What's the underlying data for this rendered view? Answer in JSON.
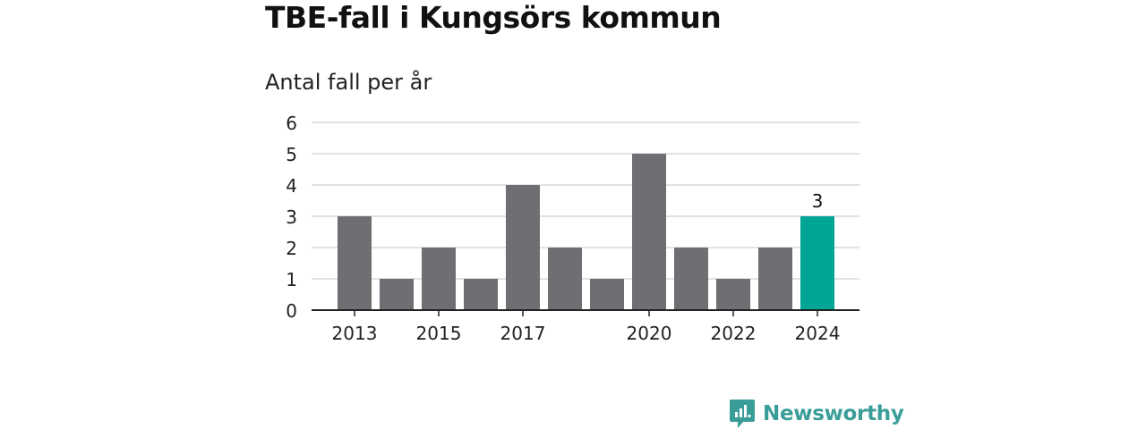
{
  "title": "TBE-fall i Kungsörs kommun",
  "subtitle": "Antal fall per år",
  "brand": "Newsworthy",
  "colors": {
    "bar": "#6e6e73",
    "highlight": "#00a596",
    "grid": "#d9d9d9",
    "axis": "#222222",
    "brand": "#3a9d98"
  },
  "chart_data": {
    "type": "bar",
    "categories": [
      "2013",
      "2014",
      "2015",
      "2016",
      "2017",
      "2018",
      "2019",
      "2020",
      "2021",
      "2022",
      "2023",
      "2024"
    ],
    "values": [
      3,
      1,
      2,
      1,
      4,
      2,
      1,
      5,
      2,
      1,
      2,
      3
    ],
    "x_tick_labels": [
      "2013",
      "2015",
      "2017",
      "2020",
      "2022",
      "2024"
    ],
    "highlight_category": "2024",
    "data_labels": [
      {
        "category": "2024",
        "text": "3"
      }
    ],
    "y_ticks": [
      0,
      1,
      2,
      3,
      4,
      5,
      6
    ],
    "ylim": [
      0,
      6
    ],
    "grid": true,
    "legend": "none"
  }
}
